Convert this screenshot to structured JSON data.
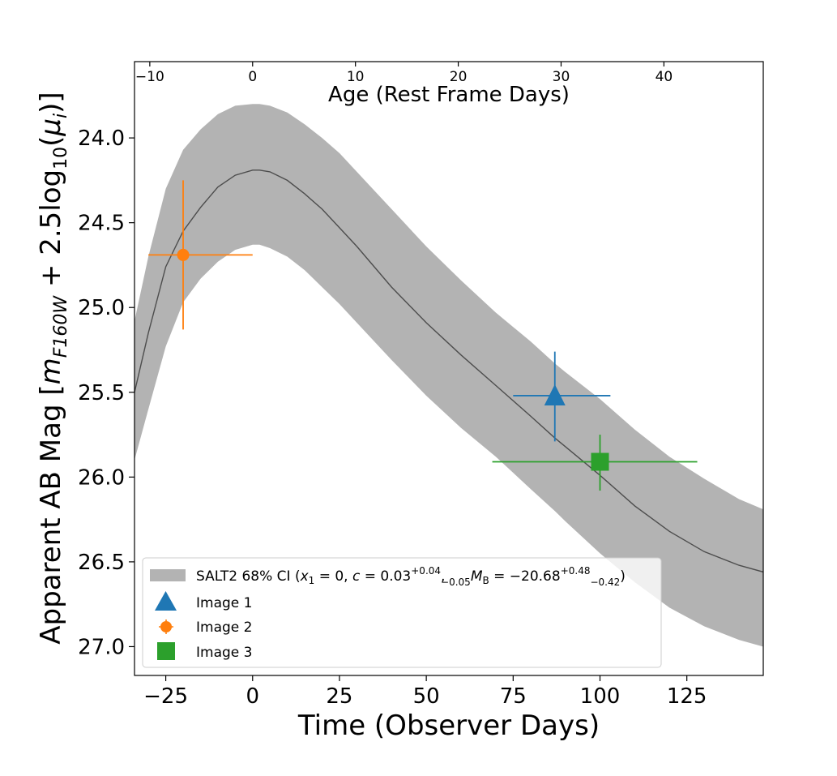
{
  "chart_data": {
    "type": "line",
    "xlabel": "Time (Observer Days)",
    "top_xlabel": "Age (Rest Frame Days)",
    "ylabel": {
      "prefix": "Apparent AB Mag [",
      "m": "m",
      "m_sub": "F160W",
      "plus": " + 2.5log",
      "log_sub": "10",
      "open": "(",
      "mu": "μ",
      "mu_sub": "i",
      "close": ")]"
    },
    "xlim": [
      -34,
      147
    ],
    "ylim": [
      27.17,
      23.55
    ],
    "inverted_y": true,
    "x_ticks": [
      -25,
      0,
      25,
      50,
      75,
      100,
      125
    ],
    "x_tick_labels": [
      "−25",
      "0",
      "25",
      "50",
      "75",
      "100",
      "125"
    ],
    "y_ticks": [
      24.0,
      24.5,
      25.0,
      25.5,
      26.0,
      26.5,
      27.0
    ],
    "y_tick_labels": [
      "24.0",
      "24.5",
      "25.0",
      "25.5",
      "26.0",
      "26.5",
      "27.0"
    ],
    "top_axis": {
      "obs_per_rest_day": 2.96,
      "obs_at_rest_zero": 0,
      "ticks": [
        -10,
        0,
        10,
        20,
        30,
        40
      ],
      "tick_labels": [
        "−10",
        "0",
        "10",
        "20",
        "30",
        "40"
      ]
    },
    "grid": false,
    "legend_placement": "lower-left",
    "model": {
      "x": [
        -34,
        -30,
        -25,
        -20,
        -15,
        -10,
        -5,
        0,
        2,
        5,
        10,
        15,
        20,
        25,
        30,
        40,
        50,
        60,
        70,
        80,
        87,
        90,
        100,
        110,
        120,
        130,
        140,
        147
      ],
      "mag": [
        25.5,
        25.15,
        24.76,
        24.55,
        24.41,
        24.29,
        24.22,
        24.19,
        24.19,
        24.2,
        24.25,
        24.33,
        24.42,
        24.53,
        24.64,
        24.88,
        25.09,
        25.28,
        25.46,
        25.64,
        25.77,
        25.82,
        25.99,
        26.17,
        26.32,
        26.44,
        26.52,
        26.56
      ],
      "band_lower": [
        25.9,
        25.6,
        25.23,
        24.97,
        24.83,
        24.73,
        24.66,
        24.63,
        24.63,
        24.65,
        24.7,
        24.78,
        24.88,
        24.98,
        25.09,
        25.31,
        25.52,
        25.71,
        25.88,
        26.07,
        26.2,
        26.26,
        26.45,
        26.62,
        26.77,
        26.88,
        26.96,
        27.0
      ],
      "band_upper": [
        25.08,
        24.7,
        24.3,
        24.07,
        23.95,
        23.86,
        23.81,
        23.8,
        23.8,
        23.81,
        23.85,
        23.92,
        24.0,
        24.09,
        24.2,
        24.42,
        24.64,
        24.84,
        25.03,
        25.2,
        25.33,
        25.38,
        25.54,
        25.72,
        25.88,
        26.01,
        26.13,
        26.19
      ],
      "line_color": "#4d4d4d",
      "band_color": "#b3b3b3"
    },
    "series": [
      {
        "name": "Image 1",
        "marker": "triangle",
        "color": "#1f77b4",
        "x": 87,
        "y": 25.52,
        "xerr": [
          12,
          16
        ],
        "yerr": [
          0.26,
          0.27
        ]
      },
      {
        "name": "Image 2",
        "marker": "circle",
        "color": "#ff7f0e",
        "x": -20,
        "y": 24.69,
        "xerr": [
          10,
          20
        ],
        "yerr": [
          0.44,
          0.44
        ]
      },
      {
        "name": "Image 3",
        "marker": "square",
        "color": "#2ca02c",
        "x": 100,
        "y": 25.91,
        "xerr": [
          31,
          28
        ],
        "yerr": [
          0.16,
          0.17
        ]
      }
    ],
    "legend": {
      "band_label": {
        "text1": "SALT2 68% CI (",
        "x1": "x",
        "x1_sub": "1",
        "text2": " = 0, ",
        "c": "c",
        "text3": " = 0.03",
        "c_sup": "+0.04",
        "c_sub": "−0.05",
        "text4": ", ",
        "M": "M",
        "M_sub": "B",
        "text5": " = −20.68",
        "M_sup": "+0.48",
        "M_lo": "−0.42",
        "text6": ")"
      }
    }
  }
}
